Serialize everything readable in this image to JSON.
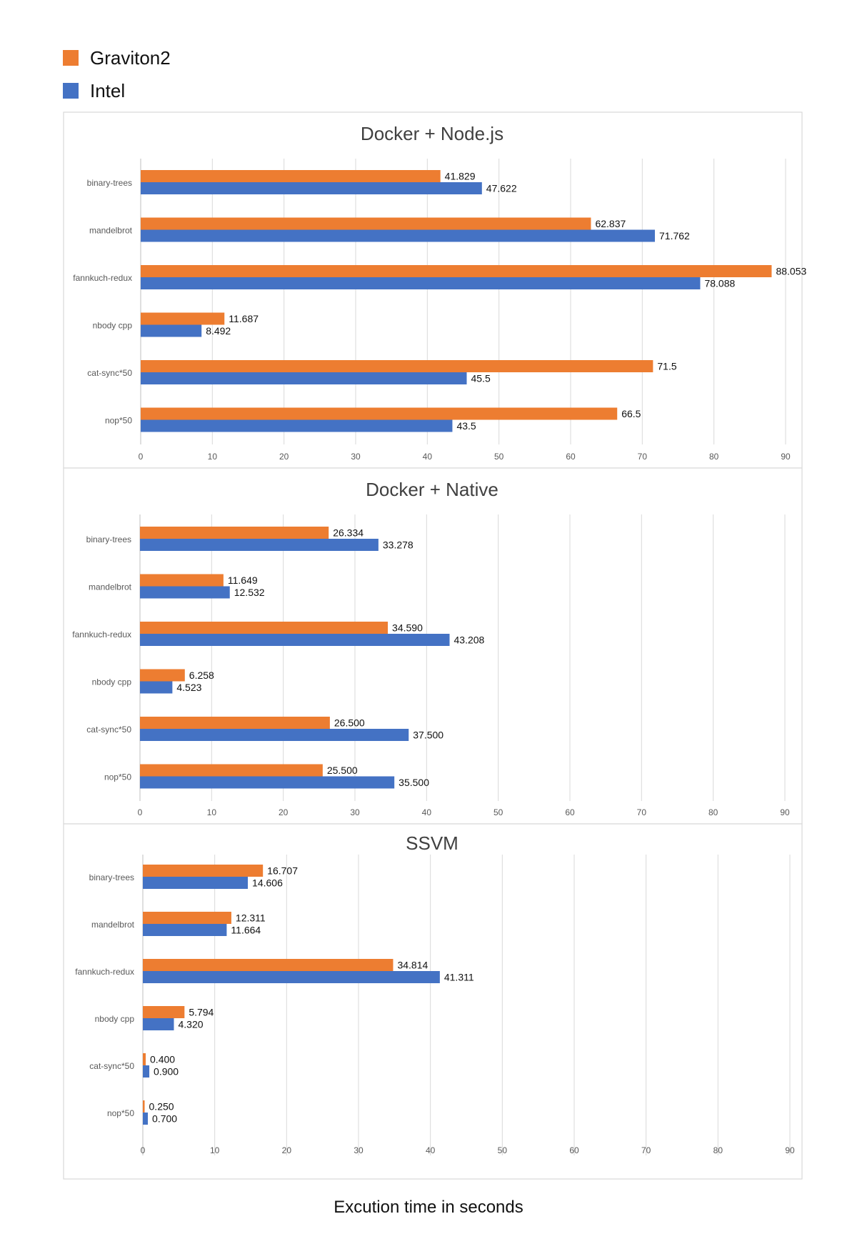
{
  "legend": {
    "items": [
      {
        "label": "Graviton2",
        "color": "#ED7D31"
      },
      {
        "label": "Intel",
        "color": "#4472C4"
      }
    ]
  },
  "x_caption": "Excution time in seconds",
  "chart_data": [
    {
      "type": "bar",
      "orientation": "horizontal",
      "title": "Docker + Node.js",
      "categories": [
        "binary-trees",
        "mandelbrot",
        "fannkuch-redux",
        "nbody cpp",
        "cat-sync*50",
        "nop*50"
      ],
      "series": [
        {
          "name": "Graviton2",
          "color": "#ED7D31",
          "values": [
            41.829,
            62.837,
            88.053,
            11.687,
            71.5,
            66.5
          ],
          "labels": [
            "41.829",
            "62.837",
            "88.053",
            "11.687",
            "71.5",
            "66.5"
          ]
        },
        {
          "name": "Intel",
          "color": "#4472C4",
          "values": [
            47.622,
            71.762,
            78.088,
            8.492,
            45.5,
            43.5
          ],
          "labels": [
            "47.622",
            "71.762",
            "78.088",
            "8.492",
            "45.5",
            "43.5"
          ]
        }
      ],
      "xlim": [
        0,
        90
      ],
      "xticks": [
        "0",
        "10",
        "20",
        "30",
        "40",
        "50",
        "60",
        "70",
        "80",
        "90"
      ],
      "grid": true
    },
    {
      "type": "bar",
      "orientation": "horizontal",
      "title": "Docker + Native",
      "categories": [
        "binary-trees",
        "mandelbrot",
        "fannkuch-redux",
        "nbody cpp",
        "cat-sync*50",
        "nop*50"
      ],
      "series": [
        {
          "name": "Graviton2",
          "color": "#ED7D31",
          "values": [
            26.334,
            11.649,
            34.59,
            6.258,
            26.5,
            25.5
          ],
          "labels": [
            "26.334",
            "11.649",
            "34.590",
            "6.258",
            "26.500",
            "25.500"
          ]
        },
        {
          "name": "Intel",
          "color": "#4472C4",
          "values": [
            33.278,
            12.532,
            43.208,
            4.523,
            37.5,
            35.5
          ],
          "labels": [
            "33.278",
            "12.532",
            "43.208",
            "4.523",
            "37.500",
            "35.500"
          ]
        }
      ],
      "xlim": [
        0,
        90
      ],
      "xticks": [
        "0",
        "10",
        "20",
        "30",
        "40",
        "50",
        "60",
        "70",
        "80",
        "90"
      ],
      "grid": true
    },
    {
      "type": "bar",
      "orientation": "horizontal",
      "title": "SSVM",
      "categories": [
        "binary-trees",
        "mandelbrot",
        "fannkuch-redux",
        "nbody cpp",
        "cat-sync*50",
        "nop*50"
      ],
      "series": [
        {
          "name": "Graviton2",
          "color": "#ED7D31",
          "values": [
            16.707,
            12.311,
            34.814,
            5.794,
            0.4,
            0.25
          ],
          "labels": [
            "16.707",
            "12.311",
            "34.814",
            "5.794",
            "0.400",
            "0.250"
          ]
        },
        {
          "name": "Intel",
          "color": "#4472C4",
          "values": [
            14.606,
            11.664,
            41.311,
            4.32,
            0.9,
            0.7
          ],
          "labels": [
            "14.606",
            "11.664",
            "41.311",
            "4.320",
            "0.900",
            "0.700"
          ]
        }
      ],
      "xlim": [
        0,
        90
      ],
      "xticks": [
        "0",
        "10",
        "20",
        "30",
        "40",
        "50",
        "60",
        "70",
        "80",
        "90"
      ],
      "grid": true
    }
  ]
}
